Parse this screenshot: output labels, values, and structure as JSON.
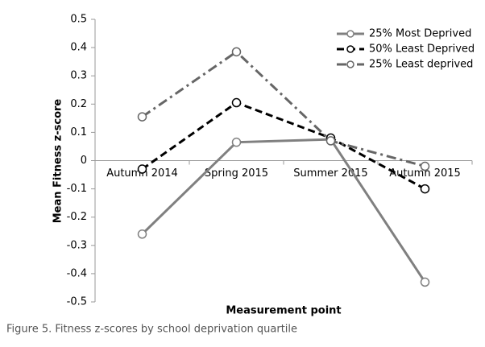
{
  "chart_data": {
    "type": "line",
    "y_label": "Mean Fitness z-score",
    "x_label": "Measurement point",
    "caption": "Figure 5. Fitness z-scores by school deprivation quartile",
    "categories": [
      "Autumn 2014",
      "Spring 2015",
      "Summer 2015",
      "Autumn 2015"
    ],
    "series": [
      {
        "name": "25% Most Deprived",
        "color": "#808080",
        "dash": "solid",
        "values": [
          -0.26,
          0.065,
          0.075,
          -0.43
        ]
      },
      {
        "name": "50% Least Deprived",
        "color": "#000000",
        "dash": "dash",
        "values": [
          -0.03,
          0.205,
          0.08,
          -0.1
        ]
      },
      {
        "name": "25% Least deprived",
        "color": "#666666",
        "dash": "dashdot",
        "values": [
          0.155,
          0.385,
          0.07,
          -0.02
        ]
      }
    ],
    "ylim": [
      -0.5,
      0.5
    ],
    "yticks": [
      -0.5,
      -0.4,
      -0.3,
      -0.2,
      -0.1,
      0,
      0.1,
      0.2,
      0.3,
      0.4,
      0.5
    ],
    "legend": "upper right"
  }
}
